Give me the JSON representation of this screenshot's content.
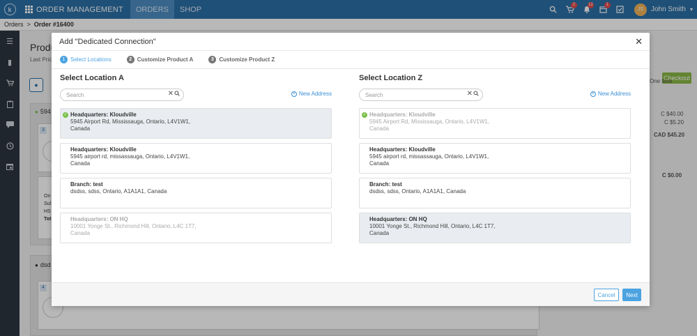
{
  "topbar": {
    "logo_letter": "k",
    "app_title": "ORDER MANAGEMENT",
    "tabs": [
      {
        "label": "ORDERS",
        "active": true
      },
      {
        "label": "SHOP",
        "active": false
      }
    ],
    "badges": {
      "cart": "2",
      "bell": "12",
      "calendar": "1"
    },
    "user_initials": "JS",
    "user_name": "John Smith"
  },
  "breadcrumb": {
    "root": "Orders",
    "separator": ">",
    "current": "Order #16400"
  },
  "background": {
    "page_title": "Produ",
    "sub": "Last Price",
    "card1_label": "594",
    "card1_badge": "3",
    "card1_sub1": "On",
    "card1_sub2": "Sul",
    "card1_sub3": "HS",
    "card1_sub4": "Tot",
    "card2_label": "dsd",
    "card2_badge": "4",
    "checkout": "Checkout",
    "one_time": "One time",
    "price1": "C $40.00",
    "price2": "C $5.20",
    "price_total": "CAD $45.20",
    "price3": "C $0.00"
  },
  "modal": {
    "title": "Add \"Dedicated Connection\"",
    "steps": [
      {
        "num": "1",
        "label": "Select Locations",
        "active": true
      },
      {
        "num": "2",
        "label": "Customize Product A",
        "active": false
      },
      {
        "num": "3",
        "label": "Customize Product Z",
        "active": false
      }
    ],
    "col_a": {
      "title": "Select Location A",
      "search_placeholder": "Search",
      "new_address": "New Address",
      "locations": [
        {
          "name": "Headquarters: Kloudville",
          "line1": "5945 Airport Rd, Mississauga, Ontario, L4V1W1,",
          "line2": "Canada",
          "state": "selected"
        },
        {
          "name": "Headquarters: Kloudville",
          "line1": "5945 airport rd, missassauga, Ontario, L4V1W1,",
          "line2": "Canada",
          "state": "normal"
        },
        {
          "name": "Branch: test",
          "line1": "dsdss, sdss, Ontario, A1A1A1, Canada",
          "line2": "",
          "state": "normal"
        },
        {
          "name": "Headquarters: ON HQ",
          "line1": "10001 Yonge St., Richmond Hill, Ontario, L4C 1T7,",
          "line2": "Canada",
          "state": "disabled"
        }
      ]
    },
    "col_z": {
      "title": "Select Location Z",
      "search_placeholder": "Search",
      "new_address": "New Address",
      "locations": [
        {
          "name": "Headquarters: Kloudville",
          "line1": "5945 Airport Rd, Mississauga, Ontario, L4V1W1,",
          "line2": "Canada",
          "state": "disabled"
        },
        {
          "name": "Headquarters: Kloudville",
          "line1": "5945 airport rd, missassauga, Ontario, L4V1W1,",
          "line2": "Canada",
          "state": "normal"
        },
        {
          "name": "Branch: test",
          "line1": "dsdss, sdss, Ontario, A1A1A1, Canada",
          "line2": "",
          "state": "normal"
        },
        {
          "name": "Headquarters: ON HQ",
          "line1": "10001 Yonge St., Richmond Hill, Ontario, L4C 1T7,",
          "line2": "Canada",
          "state": "selected"
        }
      ]
    },
    "footer": {
      "cancel": "Cancel",
      "next": "Next"
    }
  }
}
